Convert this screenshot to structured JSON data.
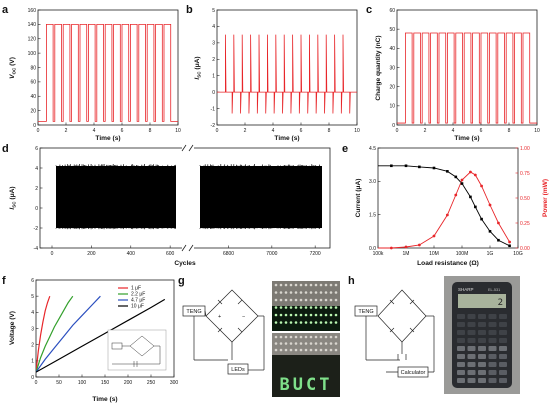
{
  "panels": {
    "a": {
      "label": "a",
      "ylabel": "V",
      "ylabel_sub": "OC",
      "yunit": " (V)",
      "xlabel": "Time (s)"
    },
    "b": {
      "label": "b",
      "ylabel": "I",
      "ylabel_sub": "SC",
      "yunit": " (μA)",
      "xlabel": "Time (s)"
    },
    "c": {
      "label": "c",
      "ylabel": "Charge quantity (nC)",
      "xlabel": "Time (s)"
    },
    "d": {
      "label": "d",
      "ylabel": "I",
      "ylabel_sub": "SC",
      "yunit": " (μA)",
      "xlabel": "Cycles"
    },
    "e": {
      "label": "e",
      "ylabel_left": "Current (μA)",
      "ylabel_right": "Power (mW)",
      "xlabel": "Load resistance (Ω)"
    },
    "f": {
      "label": "f",
      "ylabel": "Voltage (V)",
      "xlabel": "Time (s)"
    },
    "g": {
      "label": "g",
      "teng": "TENG",
      "leds": "LEDs",
      "display_text": "BUCT"
    },
    "h": {
      "label": "h",
      "teng": "TENG",
      "calculator": "Calculator",
      "calc_brand": "SHARP",
      "calc_model": "EL-531",
      "calc_display": "2"
    }
  },
  "chart_data": [
    {
      "panel": "a",
      "type": "line",
      "xlabel": "Time (s)",
      "ylabel": "VOC (V)",
      "xlim": [
        0,
        10
      ],
      "ylim": [
        0,
        160
      ],
      "xticks": [
        0,
        2,
        4,
        6,
        8,
        10
      ],
      "yticks": [
        0,
        20,
        40,
        60,
        80,
        100,
        120,
        140,
        160
      ],
      "series": [
        {
          "color": "#e8262a",
          "waveform": "square",
          "high": 140,
          "low": 5,
          "t_start": 0.6,
          "t_end": 9.3,
          "period": 0.6,
          "duty": 0.8
        }
      ]
    },
    {
      "panel": "b",
      "type": "line",
      "xlabel": "Time (s)",
      "ylabel": "ISC (μA)",
      "xlim": [
        0,
        10
      ],
      "ylim": [
        -2,
        5
      ],
      "xticks": [
        0,
        2,
        4,
        6,
        8,
        10
      ],
      "yticks": [
        -2,
        -1,
        0,
        1,
        2,
        3,
        4,
        5
      ],
      "series": [
        {
          "color": "#e8262a",
          "waveform": "spikes",
          "baseline": 0,
          "peak": 3.5,
          "trough": -1.3,
          "t_start": 0.6,
          "t_end": 9.3,
          "period": 0.6
        }
      ]
    },
    {
      "panel": "c",
      "type": "line",
      "xlabel": "Time (s)",
      "ylabel": "Charge quantity (nC)",
      "xlim": [
        0,
        10
      ],
      "ylim": [
        0,
        60
      ],
      "xticks": [
        0,
        2,
        4,
        6,
        8,
        10
      ],
      "yticks": [
        0,
        10,
        20,
        30,
        40,
        50,
        60
      ],
      "series": [
        {
          "color": "#e8262a",
          "waveform": "square",
          "high": 48,
          "low": 1,
          "t_start": 0.6,
          "t_end": 9.3,
          "period": 0.6,
          "duty": 0.8
        }
      ]
    },
    {
      "panel": "d",
      "type": "line",
      "xlabel": "Cycles",
      "ylabel": "ISC (μA)",
      "ylim": [
        -4,
        6
      ],
      "yticks": [
        -4,
        -2,
        0,
        2,
        4,
        6
      ],
      "xticks_left": [
        "0",
        "200",
        "400",
        "600"
      ],
      "xticks_right": [
        "6800",
        "7000",
        "7200"
      ],
      "segments": [
        {
          "xlim": [
            0,
            650
          ],
          "xticks": [
            0,
            200,
            400,
            600
          ]
        },
        {
          "xlim": [
            6650,
            7250
          ],
          "xticks": [
            6800,
            7000,
            7200
          ]
        }
      ],
      "series": [
        {
          "color": "#000000",
          "waveform": "dense_spikes",
          "peak": 4.1,
          "trough": -2.0
        }
      ]
    },
    {
      "panel": "e",
      "type": "scatter",
      "xlabel": "Load resistance (Ω)",
      "x_scale": "log",
      "xlim": [
        100000,
        10000000000
      ],
      "xtick_labels": [
        "100k",
        "1M",
        "10M",
        "100M",
        "1G",
        "10G"
      ],
      "ylabel_left": "Current (μA)",
      "ylim_left": [
        0,
        4.5
      ],
      "yticks_left": [
        "0.0",
        "1.5",
        "3.0",
        "4.5"
      ],
      "ylabel_right": "Power (mW)",
      "ylim_right": [
        0,
        1.0
      ],
      "yticks_right": [
        "0.00",
        "0.25",
        "0.50",
        "0.75",
        "1.00"
      ],
      "series": [
        {
          "axis": "left",
          "color": "#000000",
          "x": [
            300000,
            1000000,
            3000000,
            10000000,
            30000000,
            60000000,
            100000000,
            200000000,
            300000000,
            500000000,
            1000000000,
            2000000000,
            5000000000
          ],
          "y": [
            3.7,
            3.7,
            3.65,
            3.6,
            3.45,
            3.2,
            2.9,
            2.3,
            1.85,
            1.3,
            0.75,
            0.35,
            0.1
          ]
        },
        {
          "axis": "right",
          "color": "#e8262a",
          "x": [
            300000,
            1000000,
            3000000,
            10000000,
            30000000,
            60000000,
            100000000,
            200000000,
            300000000,
            500000000,
            1000000000,
            2000000000,
            5000000000
          ],
          "y": [
            0.0,
            0.01,
            0.03,
            0.12,
            0.33,
            0.53,
            0.68,
            0.76,
            0.73,
            0.62,
            0.43,
            0.25,
            0.06
          ]
        }
      ]
    },
    {
      "panel": "f",
      "type": "line",
      "xlabel": "Time (s)",
      "ylabel": "Voltage (V)",
      "xlim": [
        0,
        300
      ],
      "ylim": [
        0,
        6
      ],
      "xticks": [
        0,
        50,
        100,
        150,
        200,
        250,
        300
      ],
      "yticks": [
        0,
        1,
        2,
        3,
        4,
        5,
        6
      ],
      "legend": "upper-right",
      "series": [
        {
          "name": "1 μF",
          "color": "#e8262a",
          "x": [
            0,
            5,
            10,
            15,
            20,
            25,
            30
          ],
          "y": [
            0.3,
            1.6,
            2.6,
            3.4,
            4.1,
            4.6,
            5.0
          ]
        },
        {
          "name": "2.2 μF",
          "color": "#33a02c",
          "x": [
            0,
            10,
            20,
            30,
            40,
            50,
            60,
            70,
            80
          ],
          "y": [
            0.3,
            1.2,
            1.9,
            2.5,
            3.1,
            3.6,
            4.1,
            4.6,
            5.0
          ]
        },
        {
          "name": "4.7 μF",
          "color": "#2b4fbf",
          "x": [
            0,
            20,
            40,
            60,
            80,
            100,
            120,
            140
          ],
          "y": [
            0.3,
            1.1,
            1.8,
            2.5,
            3.2,
            3.8,
            4.4,
            5.0
          ]
        },
        {
          "name": "10 μF",
          "color": "#000000",
          "x": [
            0,
            50,
            100,
            150,
            200,
            250,
            280
          ],
          "y": [
            0.3,
            1.1,
            1.9,
            2.7,
            3.5,
            4.3,
            4.8
          ]
        }
      ]
    }
  ]
}
